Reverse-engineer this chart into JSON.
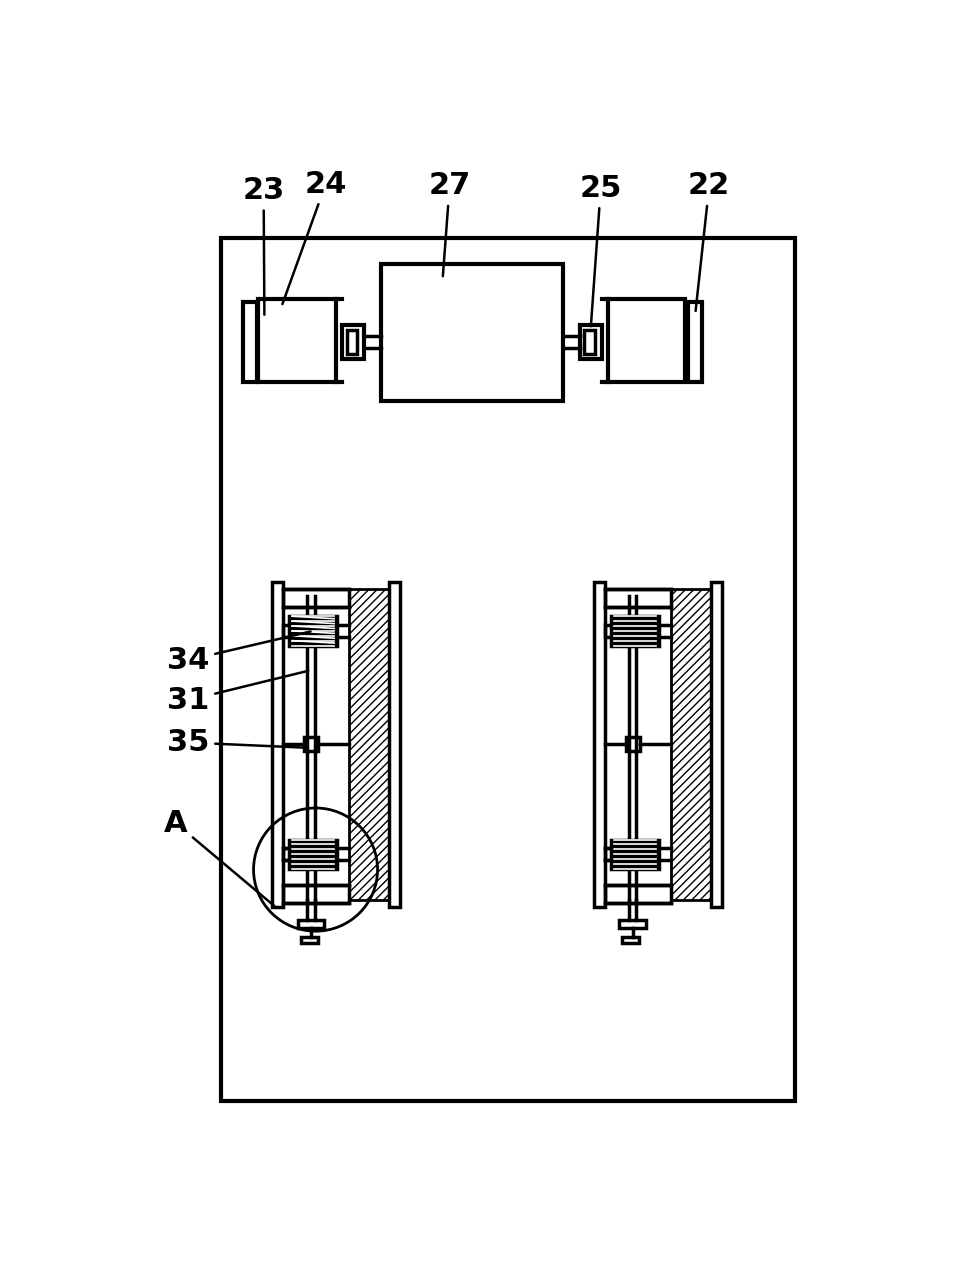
{
  "bg_color": "#ffffff",
  "line_color": "#000000",
  "fig_width": 9.62,
  "fig_height": 12.79,
  "font_size": 22
}
